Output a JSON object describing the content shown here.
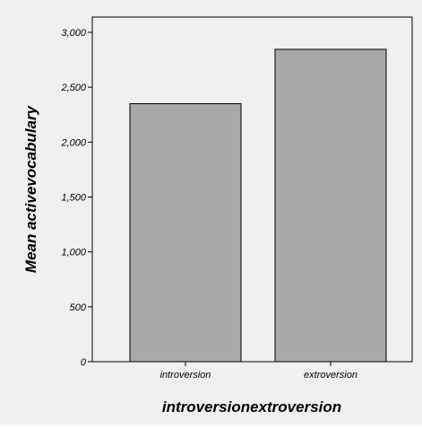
{
  "chart_data": {
    "type": "bar",
    "categories": [
      "introversion",
      "extroversion"
    ],
    "values": [
      2350,
      2845
    ],
    "xlabel": "introversionextroversion",
    "ylabel": "Mean activevocabulary",
    "ylim": [
      0,
      3150
    ],
    "yticks": [
      0,
      500,
      1000,
      1500,
      2000,
      2500,
      3000
    ],
    "ytick_labels": [
      "0",
      "500",
      "1,000",
      "1,500",
      "2,000",
      "2,500",
      "3,000"
    ],
    "grid": false,
    "legend": "none",
    "colors": {
      "bar_fill": "#a9a9a9",
      "bar_stroke": "#000000",
      "plot_background": "#f0f0f0",
      "axis": "#000000"
    }
  }
}
